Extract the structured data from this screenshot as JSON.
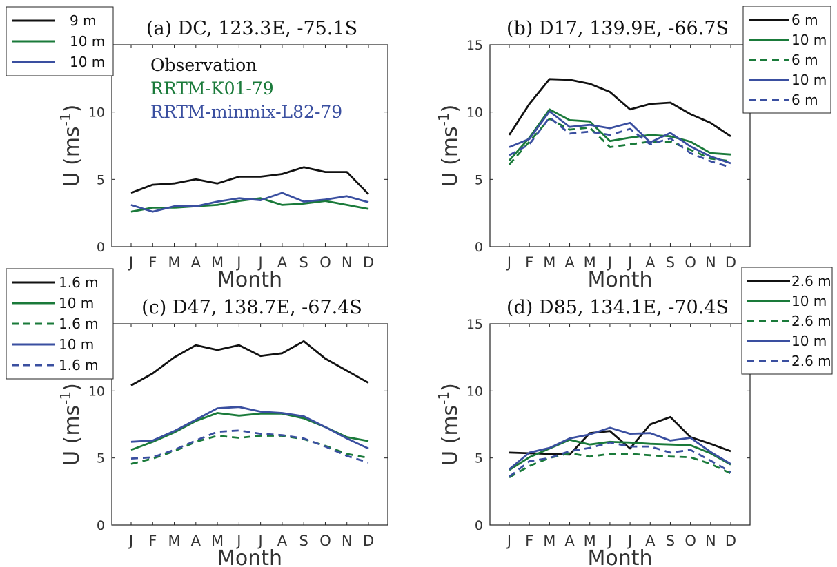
{
  "colors": {
    "obs": "#111111",
    "k01": "#1a7a3a",
    "minmix": "#3a4fa0"
  },
  "chart_data": [
    {
      "type": "line",
      "title": "(a) DC, 123.3E, -75.1S",
      "xlabel": "Month",
      "ylabel_main": "U (ms",
      "ylabel_sup": "-1",
      "ylabel_close": ")",
      "categories": [
        "J",
        "F",
        "M",
        "A",
        "M",
        "J",
        "J",
        "A",
        "S",
        "O",
        "N",
        "D"
      ],
      "ylim": [
        0,
        15
      ],
      "yticks": [
        0,
        5,
        10
      ],
      "legend_position": "outside-top-left",
      "annotations": [
        {
          "text": "Observation",
          "color": "obs"
        },
        {
          "text": "RRTM-K01-79",
          "color": "k01"
        },
        {
          "text": "RRTM-minmix-L82-79",
          "color": "minmix"
        }
      ],
      "series": [
        {
          "name": "9 m",
          "color": "obs",
          "dashed": false,
          "values": [
            4.0,
            4.6,
            4.7,
            5.0,
            4.7,
            5.2,
            5.2,
            5.4,
            5.9,
            5.55,
            5.55,
            3.9
          ]
        },
        {
          "name": "10 m",
          "color": "k01",
          "dashed": false,
          "values": [
            2.6,
            2.9,
            2.9,
            3.0,
            3.1,
            3.4,
            3.6,
            3.1,
            3.2,
            3.4,
            3.1,
            2.8
          ]
        },
        {
          "name": "10 m",
          "color": "minmix",
          "dashed": false,
          "values": [
            3.1,
            2.6,
            3.0,
            3.0,
            3.35,
            3.6,
            3.45,
            4.0,
            3.35,
            3.5,
            3.75,
            3.3
          ]
        }
      ]
    },
    {
      "type": "line",
      "title": "(b) D17, 139.9E, -66.7S",
      "xlabel": "Month",
      "ylabel_main": "U (ms",
      "ylabel_sup": "-1",
      "ylabel_close": ")",
      "categories": [
        "J",
        "F",
        "M",
        "A",
        "M",
        "J",
        "J",
        "A",
        "S",
        "O",
        "N",
        "D"
      ],
      "ylim": [
        0,
        15
      ],
      "yticks": [
        0,
        5,
        10,
        15
      ],
      "legend_position": "outside-top-right",
      "series": [
        {
          "name": "6 m",
          "color": "obs",
          "dashed": false,
          "values": [
            8.3,
            10.6,
            12.45,
            12.4,
            12.1,
            11.5,
            10.2,
            10.6,
            10.7,
            9.85,
            9.2,
            8.2
          ]
        },
        {
          "name": "10 m",
          "color": "k01",
          "dashed": false,
          "values": [
            6.4,
            8.1,
            10.2,
            9.4,
            9.3,
            7.85,
            8.1,
            8.3,
            8.2,
            7.8,
            6.95,
            6.85
          ]
        },
        {
          "name": "6 m",
          "color": "k01",
          "dashed": true,
          "values": [
            6.1,
            7.8,
            9.5,
            8.7,
            8.85,
            7.4,
            7.6,
            7.8,
            7.8,
            7.2,
            6.55,
            6.35
          ]
        },
        {
          "name": "10 m",
          "color": "minmix",
          "dashed": false,
          "values": [
            7.4,
            8.0,
            10.05,
            8.9,
            9.05,
            8.8,
            9.2,
            7.75,
            8.45,
            7.45,
            6.7,
            6.2
          ]
        },
        {
          "name": "6 m",
          "color": "minmix",
          "dashed": true,
          "values": [
            6.8,
            7.6,
            9.6,
            8.4,
            8.55,
            8.3,
            8.75,
            7.6,
            8.05,
            6.95,
            6.35,
            5.9
          ]
        }
      ]
    },
    {
      "type": "line",
      "title": "(c) D47, 138.7E, -67.4S",
      "xlabel": "Month",
      "ylabel_main": "U (ms",
      "ylabel_sup": "-1",
      "ylabel_close": ")",
      "categories": [
        "J",
        "F",
        "M",
        "A",
        "M",
        "J",
        "J",
        "A",
        "S",
        "O",
        "N",
        "D"
      ],
      "ylim": [
        0,
        15
      ],
      "yticks": [
        0,
        5,
        10
      ],
      "legend_position": "outside-top-left",
      "series": [
        {
          "name": "1.6 m",
          "color": "obs",
          "dashed": false,
          "values": [
            10.4,
            11.3,
            12.5,
            13.4,
            13.05,
            13.4,
            12.6,
            12.8,
            13.7,
            12.4,
            11.5,
            10.6
          ]
        },
        {
          "name": "10 m",
          "color": "k01",
          "dashed": false,
          "values": [
            5.6,
            6.2,
            6.9,
            7.75,
            8.35,
            8.15,
            8.3,
            8.3,
            7.95,
            7.3,
            6.55,
            6.25
          ]
        },
        {
          "name": "1.6 m",
          "color": "k01",
          "dashed": true,
          "values": [
            4.55,
            4.95,
            5.5,
            6.2,
            6.65,
            6.5,
            6.65,
            6.65,
            6.4,
            5.9,
            5.3,
            5.0
          ]
        },
        {
          "name": "10 m",
          "color": "minmix",
          "dashed": false,
          "values": [
            6.2,
            6.3,
            7.0,
            7.85,
            8.7,
            8.8,
            8.45,
            8.35,
            8.1,
            7.3,
            6.45,
            5.7
          ]
        },
        {
          "name": "1.6 m",
          "color": "minmix",
          "dashed": true,
          "values": [
            4.95,
            5.05,
            5.6,
            6.3,
            6.95,
            7.05,
            6.8,
            6.7,
            6.45,
            5.85,
            5.15,
            4.65
          ]
        }
      ]
    },
    {
      "type": "line",
      "title": "(d) D85, 134.1E, -70.4S",
      "xlabel": "Month",
      "ylabel_main": "U (ms",
      "ylabel_sup": "-1",
      "ylabel_close": ")",
      "categories": [
        "J",
        "F",
        "M",
        "A",
        "M",
        "J",
        "J",
        "A",
        "S",
        "O",
        "N",
        "D"
      ],
      "ylim": [
        0,
        15
      ],
      "yticks": [
        0,
        5,
        10,
        15
      ],
      "legend_position": "outside-top-right",
      "series": [
        {
          "name": "2.6 m",
          "color": "obs",
          "dashed": false,
          "values": [
            5.4,
            5.35,
            5.3,
            5.25,
            6.85,
            7.0,
            5.7,
            7.5,
            8.05,
            6.55,
            6.05,
            5.5
          ]
        },
        {
          "name": "10 m",
          "color": "k01",
          "dashed": false,
          "values": [
            4.1,
            5.05,
            5.7,
            6.35,
            6.0,
            6.2,
            6.15,
            6.05,
            6.0,
            5.95,
            5.35,
            4.5
          ]
        },
        {
          "name": "2.6 m",
          "color": "k01",
          "dashed": true,
          "values": [
            3.55,
            4.4,
            5.0,
            5.35,
            5.1,
            5.3,
            5.3,
            5.2,
            5.1,
            5.05,
            4.55,
            3.85
          ]
        },
        {
          "name": "10 m",
          "color": "minmix",
          "dashed": false,
          "values": [
            4.15,
            5.4,
            5.75,
            6.45,
            6.75,
            7.25,
            6.8,
            6.85,
            6.3,
            6.5,
            5.45,
            4.55
          ]
        },
        {
          "name": "2.6 m",
          "color": "minmix",
          "dashed": true,
          "values": [
            3.6,
            4.75,
            5.0,
            5.5,
            5.75,
            6.15,
            5.85,
            5.85,
            5.4,
            5.6,
            4.8,
            3.95
          ]
        }
      ]
    }
  ]
}
